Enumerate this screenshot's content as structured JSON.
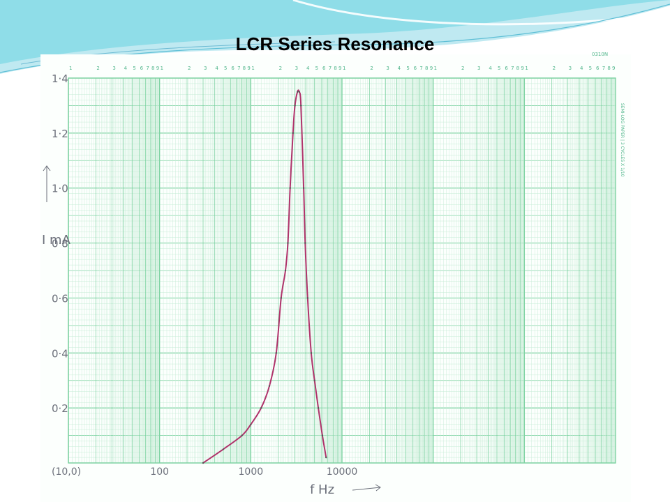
{
  "slide": {
    "title": "LCR Series Resonance",
    "paper_note": "SEMI-LOG PAPER | 3 CYCLES X 1/10",
    "corner_code": "0310N",
    "colors": {
      "grid": "#7fd3a3",
      "grid_minor": "#c6ecd6",
      "curve": "#b0336b",
      "header_wave": "#8fdde8"
    }
  },
  "chart_data": {
    "type": "line",
    "title": "",
    "xlabel": "f Hz",
    "ylabel": "I mA",
    "x_scale": "log",
    "origin_label": "(10,0)",
    "x_tick_labels": [
      {
        "value": 100,
        "label": "100"
      },
      {
        "value": 1000,
        "label": "1000"
      },
      {
        "value": 10000,
        "label": "10000"
      }
    ],
    "y_tick_labels": [
      {
        "value": 0.2,
        "label": "0·2"
      },
      {
        "value": 0.4,
        "label": "0·4"
      },
      {
        "value": 0.6,
        "label": "0·6"
      },
      {
        "value": 0.8,
        "label": "0·8"
      },
      {
        "value": 1.0,
        "label": "1·0"
      },
      {
        "value": 1.2,
        "label": "1·2"
      },
      {
        "value": 1.4,
        "label": "1·4"
      }
    ],
    "cycle_labels": [
      "1",
      "2",
      "3",
      "4",
      "5",
      "6",
      "7",
      "8",
      "9"
    ],
    "xlim": [
      10,
      10000000
    ],
    "ylim": [
      0,
      1.4
    ],
    "grid": true,
    "series": [
      {
        "x": [
          300,
          500,
          800,
          1000,
          1300,
          1600,
          1900,
          2150,
          2400,
          2550,
          2700,
          2900,
          3050,
          3250,
          3400,
          3550,
          3800,
          3950,
          4200,
          4600,
          5000,
          5500,
          6100,
          6700
        ],
        "y": [
          0.0,
          0.05,
          0.1,
          0.14,
          0.2,
          0.28,
          0.4,
          0.6,
          0.7,
          0.8,
          1.0,
          1.2,
          1.3,
          1.35,
          1.35,
          1.3,
          1.0,
          0.8,
          0.6,
          0.4,
          0.3,
          0.2,
          0.1,
          0.02
        ]
      }
    ]
  }
}
